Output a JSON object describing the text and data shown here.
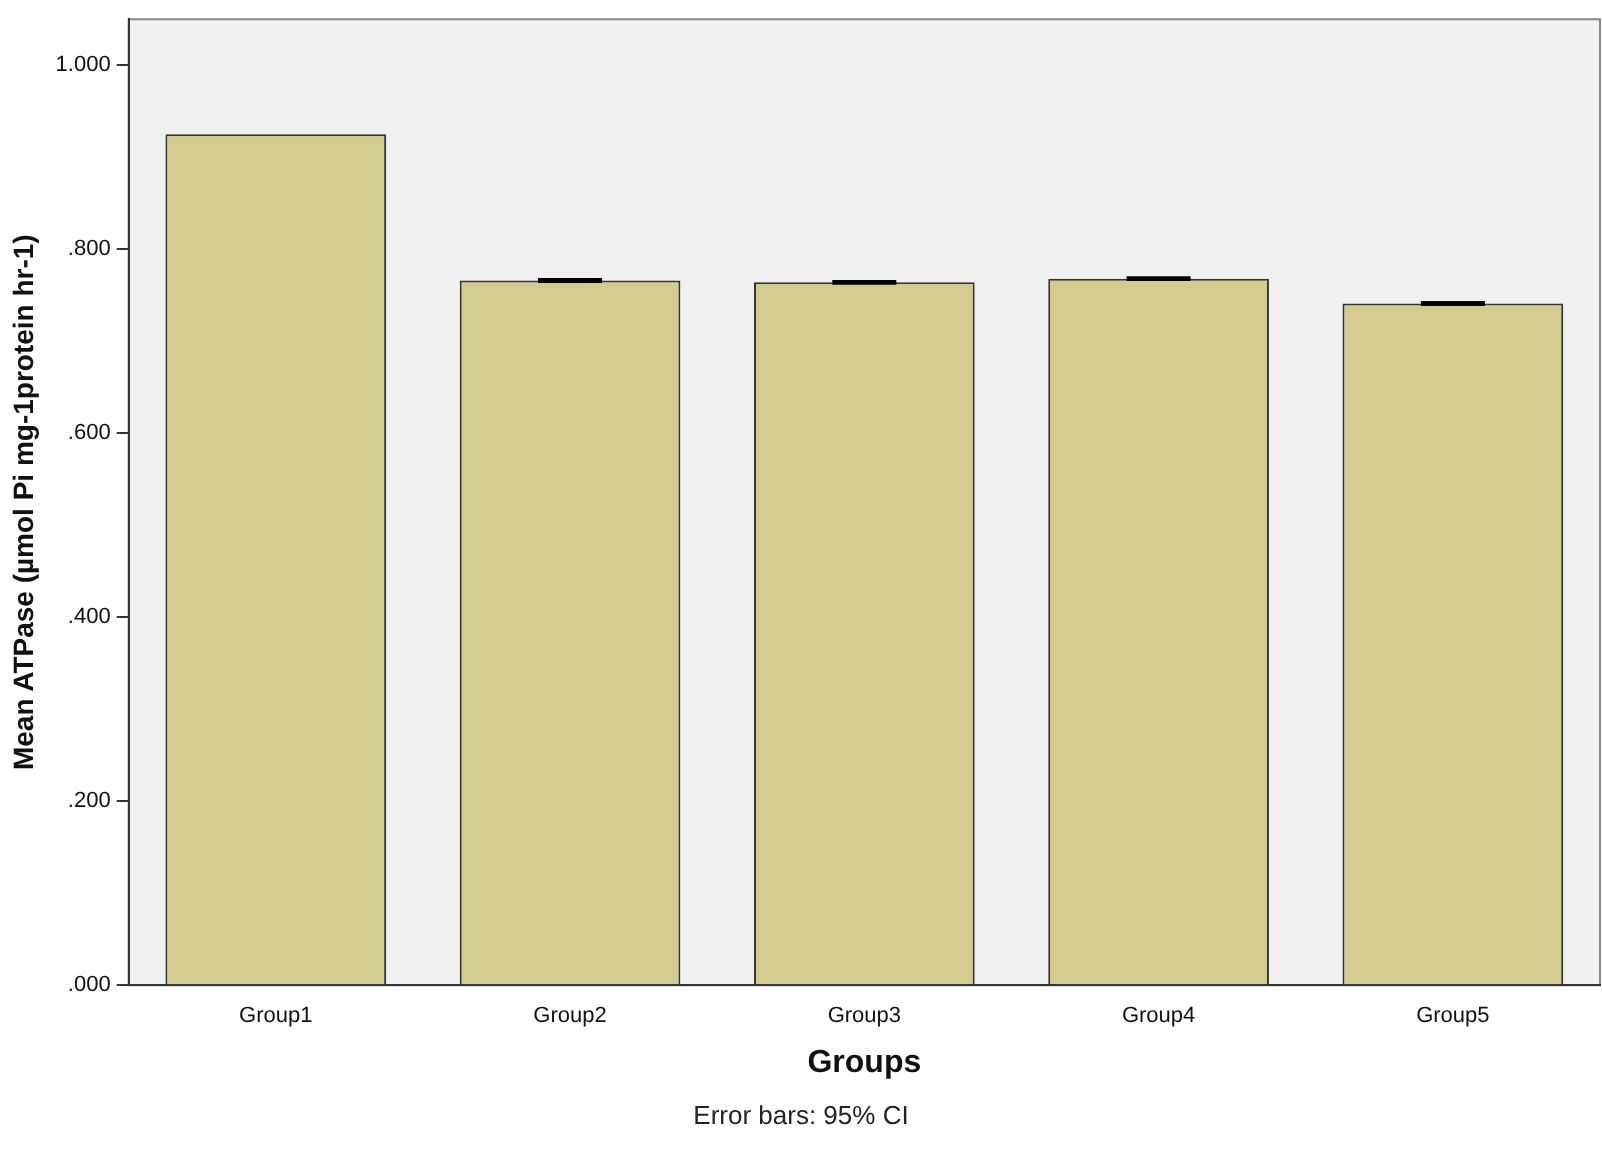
{
  "chart_data": {
    "type": "bar",
    "xlabel": "Groups",
    "ylabel": "Mean ATPase (µmol Pi mg-1protein hr-1)",
    "categories": [
      "Group1",
      "Group2",
      "Group3",
      "Group4",
      "Group5"
    ],
    "values": [
      0.925,
      0.766,
      0.764,
      0.768,
      0.741
    ],
    "errors": [
      null,
      0.001,
      0.001,
      0.001,
      0.001
    ],
    "color": "#d4cc8e",
    "ylim": [
      0,
      1.05
    ],
    "yticks": [
      {
        "value": 0,
        "label": ".000"
      },
      {
        "value": 0.2,
        "label": ".200"
      },
      {
        "value": 0.4,
        "label": ".400"
      },
      {
        "value": 0.6,
        "label": ".600"
      },
      {
        "value": 0.8,
        "label": ".800"
      },
      {
        "value": 1,
        "label": "1.000"
      }
    ],
    "grid": false,
    "legend": false,
    "annotations": [
      "Error bars: 95% CI"
    ]
  }
}
